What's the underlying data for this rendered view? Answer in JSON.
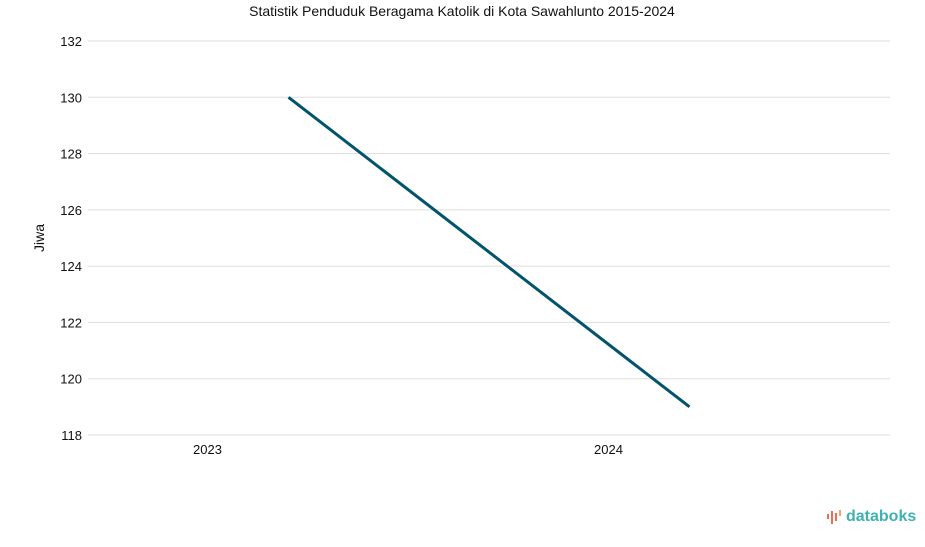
{
  "chart_data": {
    "type": "line",
    "title": "Statistik Penduduk Beragama Katolik di Kota Sawahlunto 2015-2024",
    "xlabel": "",
    "ylabel": "Jiwa",
    "categories": [
      "2023",
      "2024"
    ],
    "series": [
      {
        "name": "Jiwa",
        "values": [
          130,
          119
        ],
        "color": "#02546c"
      }
    ],
    "ylim": [
      118,
      132
    ],
    "yticks": [
      118,
      120,
      122,
      124,
      126,
      128,
      130,
      132
    ],
    "grid": true,
    "legend": "none"
  },
  "logo": {
    "text": "databoks",
    "color": "#3fb1b0",
    "accent": "#f06c54"
  }
}
